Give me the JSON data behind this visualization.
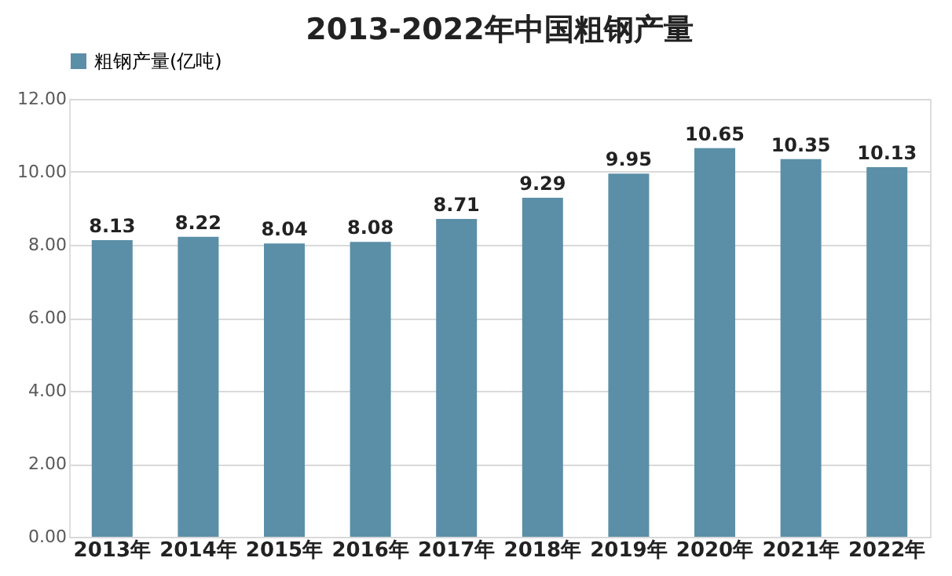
{
  "chart_data": {
    "type": "bar",
    "title": "2013-2022年中国粗钢产量",
    "categories": [
      "2013年",
      "2014年",
      "2015年",
      "2016年",
      "2017年",
      "2018年",
      "2019年",
      "2020年",
      "2021年",
      "2022年"
    ],
    "series": [
      {
        "name": "粗钢产量(亿吨)",
        "color": "#5b8fa7",
        "values": [
          8.13,
          8.22,
          8.04,
          8.08,
          8.71,
          9.29,
          9.95,
          10.65,
          10.35,
          10.13
        ]
      }
    ],
    "ylim": [
      0,
      12
    ],
    "yticks": [
      {
        "value": 0,
        "label": "0.00"
      },
      {
        "value": 2,
        "label": "2.00"
      },
      {
        "value": 4,
        "label": "4.00"
      },
      {
        "value": 6,
        "label": "6.00"
      },
      {
        "value": 8,
        "label": "8.00"
      },
      {
        "value": 10,
        "label": "10.00"
      },
      {
        "value": 12,
        "label": "12.00"
      }
    ],
    "grid": "y",
    "legend": "top",
    "data_labels": true
  }
}
